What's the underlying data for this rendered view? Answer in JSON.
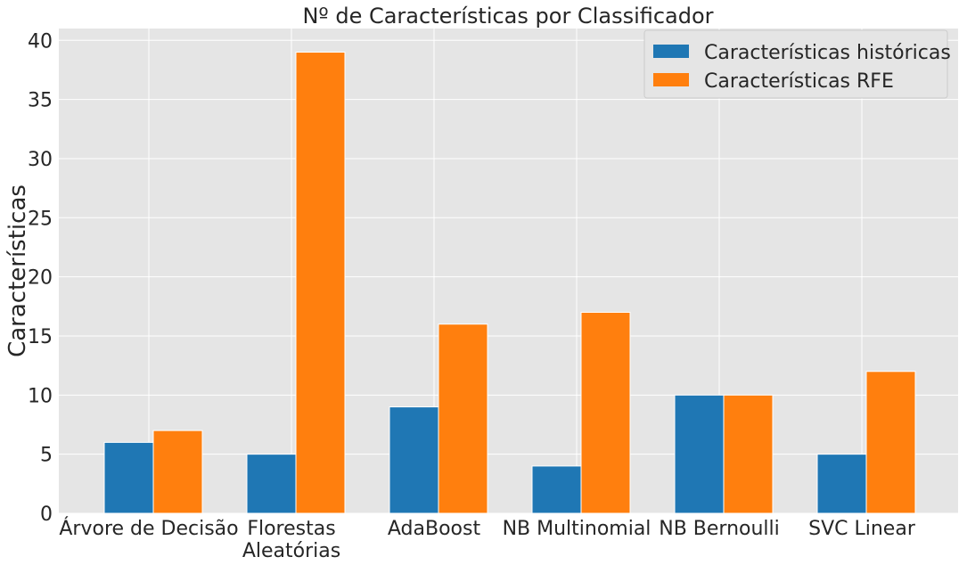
{
  "chart_data": {
    "type": "bar",
    "title": "Nº de Características por Classificador",
    "xlabel": "",
    "ylabel": "Características",
    "categories": [
      [
        "Árvore de Decisão"
      ],
      [
        "Florestas",
        "Aleatórias"
      ],
      [
        "AdaBoost"
      ],
      [
        "NB Multinomial"
      ],
      [
        "NB Bernoulli"
      ],
      [
        "SVC Linear"
      ]
    ],
    "series": [
      {
        "name": "Características históricas",
        "color": "#1f77b4",
        "values": [
          6,
          5,
          9,
          4,
          10,
          5
        ]
      },
      {
        "name": "Características RFE",
        "color": "#ff7f0e",
        "values": [
          7,
          39,
          16,
          17,
          10,
          12
        ]
      }
    ],
    "ylim": [
      0,
      41
    ],
    "yticks": [
      0,
      5,
      10,
      15,
      20,
      25,
      30,
      35,
      40
    ],
    "grid": true,
    "legend_position": "top-right",
    "plot_background": "#e5e5e5",
    "grid_color": "#ffffff"
  }
}
